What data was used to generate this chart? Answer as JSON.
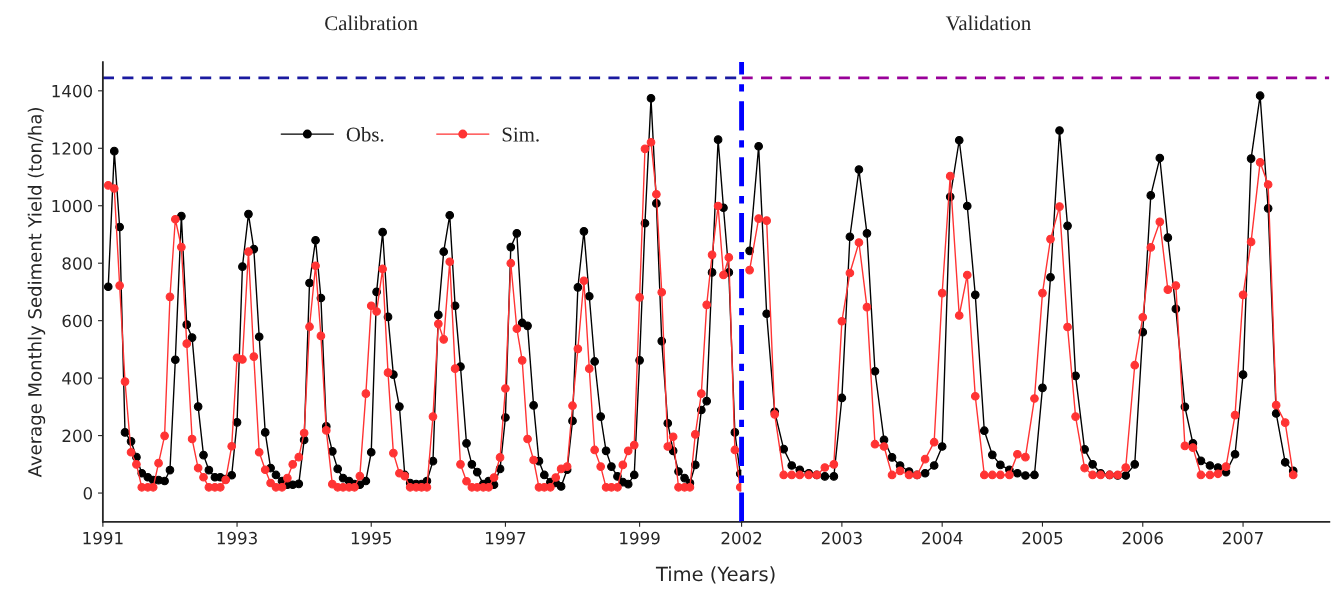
{
  "chart_data": [
    {
      "type": "line",
      "xlabel": "Time (Years)",
      "ylabel": "Average Monthly Sediment Yield (ton/ha)",
      "annotations": [
        "Calibration"
      ],
      "x": [
        1991.08,
        1991.17,
        1991.25,
        1991.33,
        1991.42,
        1991.5,
        1991.58,
        1991.67,
        1991.75,
        1991.83,
        1991.92,
        1992.0,
        1992.08,
        1992.17,
        1992.25,
        1992.33,
        1992.42,
        1992.5,
        1992.58,
        1992.67,
        1992.75,
        1992.83,
        1992.92,
        1993.0,
        1993.08,
        1993.17,
        1993.25,
        1993.33,
        1993.42,
        1993.5,
        1993.58,
        1993.67,
        1993.75,
        1993.83,
        1993.92,
        1994.0,
        1994.08,
        1994.17,
        1994.25,
        1994.33,
        1994.42,
        1994.5,
        1994.58,
        1994.67,
        1994.75,
        1994.83,
        1994.92,
        1995.0,
        1995.08,
        1995.17,
        1995.25,
        1995.33,
        1995.42,
        1995.5,
        1995.58,
        1995.67,
        1995.75,
        1995.83,
        1995.92,
        1996.0,
        1996.08,
        1996.17,
        1996.25,
        1996.33,
        1996.42,
        1996.5,
        1996.58,
        1996.67,
        1996.75,
        1996.83,
        1996.92,
        1997.0,
        1997.08,
        1997.17,
        1997.25,
        1997.33,
        1997.42,
        1997.5,
        1997.58,
        1997.67,
        1997.75,
        1997.83,
        1997.92,
        1998.0,
        1998.08,
        1998.17,
        1998.25,
        1998.33,
        1998.42,
        1998.5,
        1998.58,
        1998.67,
        1998.75,
        1998.83,
        1998.92,
        1999.0,
        1999.08,
        1999.17,
        1999.25,
        1999.33,
        1999.42,
        1999.5,
        1999.58,
        1999.67,
        1999.75,
        1999.83,
        1999.92,
        2000.0,
        2000.08,
        2000.17,
        2000.25,
        2000.33,
        2000.42,
        2000.5
      ],
      "series": [
        {
          "name": "Obs.",
          "color": "#000000",
          "values": [
            718,
            1190,
            926,
            211,
            180,
            125,
            69,
            55,
            45,
            45,
            42,
            80,
            464,
            964,
            586,
            541,
            301,
            132,
            80,
            55,
            55,
            49,
            62,
            246,
            788,
            971,
            849,
            544,
            211,
            87,
            63,
            42,
            29,
            29,
            32,
            185,
            731,
            880,
            679,
            232,
            145,
            84,
            52,
            42,
            31,
            29,
            42,
            142,
            700,
            908,
            613,
            412,
            301,
            63,
            35,
            31,
            31,
            42,
            111,
            620,
            840,
            967,
            652,
            440,
            173,
            100,
            73,
            31,
            42,
            29,
            84,
            263,
            856,
            904,
            592,
            582,
            305,
            111,
            63,
            38,
            35,
            23,
            81,
            251,
            716,
            911,
            685,
            458,
            266,
            147,
            92,
            58,
            38,
            31,
            63,
            462,
            939,
            1374,
            1008,
            529,
            243,
            147,
            75,
            52,
            35,
            98,
            289,
            320,
            768,
            1230,
            993,
            768,
            211,
            67
          ]
        },
        {
          "name": "Sim.",
          "color": "#ff3333",
          "values": [
            1071,
            1060,
            722,
            388,
            142,
            100,
            20,
            20,
            20,
            104,
            199,
            683,
            953,
            856,
            520,
            188,
            87,
            55,
            20,
            20,
            20,
            46,
            163,
            471,
            465,
            840,
            475,
            142,
            81,
            35,
            20,
            20,
            52,
            100,
            125,
            209,
            579,
            791,
            547,
            218,
            31,
            20,
            20,
            20,
            20,
            59,
            346,
            652,
            632,
            780,
            419,
            139,
            69,
            59,
            20,
            20,
            20,
            20,
            266,
            589,
            535,
            805,
            433,
            100,
            41,
            20,
            20,
            20,
            20,
            54,
            124,
            364,
            800,
            572,
            462,
            188,
            115,
            20,
            20,
            20,
            54,
            84,
            92,
            304,
            502,
            739,
            433,
            150,
            92,
            20,
            20,
            20,
            98,
            147,
            167,
            681,
            1198,
            1221,
            1040,
            699,
            162,
            196,
            20,
            20,
            20,
            204,
            346,
            655,
            829,
            999,
            759,
            820,
            150,
            20
          ]
        }
      ],
      "ref_lines": [
        {
          "axis": "y",
          "value": 1445,
          "color": "#1a1aa0",
          "line_style": "dashed"
        }
      ],
      "marker": "circle",
      "line_style": "solid",
      "grid": false,
      "legend": "top left",
      "xlim": [
        1991,
        2000.52
      ],
      "xticks": [
        1991,
        1993,
        1995,
        1997,
        1999
      ],
      "ylim": [
        -100,
        1500
      ],
      "yticks": [
        0,
        200,
        400,
        600,
        800,
        1000,
        1200,
        1400
      ]
    },
    {
      "type": "line",
      "annotations": [
        "Validation"
      ],
      "x": [
        2002.08,
        2002.17,
        2002.25,
        2002.33,
        2002.42,
        2002.5,
        2002.58,
        2002.67,
        2002.75,
        2002.83,
        2002.92,
        2003.0,
        2003.08,
        2003.17,
        2003.25,
        2003.33,
        2003.42,
        2003.5,
        2003.58,
        2003.67,
        2003.75,
        2003.83,
        2003.92,
        2004.0,
        2004.08,
        2004.17,
        2004.25,
        2004.33,
        2004.42,
        2004.5,
        2004.58,
        2004.67,
        2004.75,
        2004.83,
        2004.92,
        2005.0,
        2005.08,
        2005.17,
        2005.25,
        2005.33,
        2005.42,
        2005.5,
        2005.58,
        2005.67,
        2005.75,
        2005.83,
        2005.92,
        2006.0,
        2006.08,
        2006.17,
        2006.25,
        2006.33,
        2006.42,
        2006.5,
        2006.58,
        2006.67,
        2006.75,
        2006.83,
        2006.92,
        2007.0,
        2007.08,
        2007.17,
        2007.25,
        2007.33,
        2007.42,
        2007.5
      ],
      "series": [
        {
          "color": "#000000",
          "values": [
            843,
            1207,
            624,
            283,
            153,
            96,
            81,
            69,
            63,
            58,
            58,
            331,
            892,
            1126,
            904,
            424,
            185,
            124,
            96,
            75,
            63,
            69,
            96,
            162,
            1031,
            1228,
            999,
            690,
            217,
            133,
            98,
            81,
            69,
            61,
            63,
            366,
            751,
            1262,
            930,
            408,
            152,
            100,
            69,
            63,
            61,
            61,
            100,
            560,
            1036,
            1166,
            889,
            641,
            300,
            173,
            112,
            96,
            89,
            73,
            135,
            412,
            1164,
            1383,
            991,
            277,
            107,
            77
          ]
        },
        {
          "color": "#ff3333",
          "values": [
            776,
            955,
            948,
            274,
            63,
            63,
            63,
            63,
            63,
            89,
            100,
            598,
            766,
            872,
            647,
            170,
            162,
            63,
            77,
            63,
            63,
            118,
            177,
            696,
            1103,
            618,
            759,
            337,
            63,
            63,
            63,
            63,
            135,
            125,
            329,
            696,
            884,
            997,
            578,
            266,
            87,
            63,
            63,
            63,
            63,
            89,
            445,
            612,
            855,
            944,
            708,
            722,
            164,
            158,
            63,
            63,
            67,
            92,
            271,
            690,
            874,
            1151,
            1074,
            306,
            245,
            63
          ]
        }
      ],
      "ref_lines": [
        {
          "axis": "y",
          "value": 1445,
          "color": "#990099",
          "line_style": "dashed"
        },
        {
          "axis": "x",
          "value": 2002,
          "color": "#0000ff",
          "line_style": "dashdot"
        }
      ],
      "marker": "circle",
      "line_style": "solid",
      "grid": false,
      "tick_labels": "x",
      "xlim": [
        2002,
        2007.86
      ],
      "xticks": [
        2002,
        2003,
        2004,
        2005,
        2006,
        2007
      ],
      "ylim": [
        -100,
        1500
      ]
    }
  ]
}
